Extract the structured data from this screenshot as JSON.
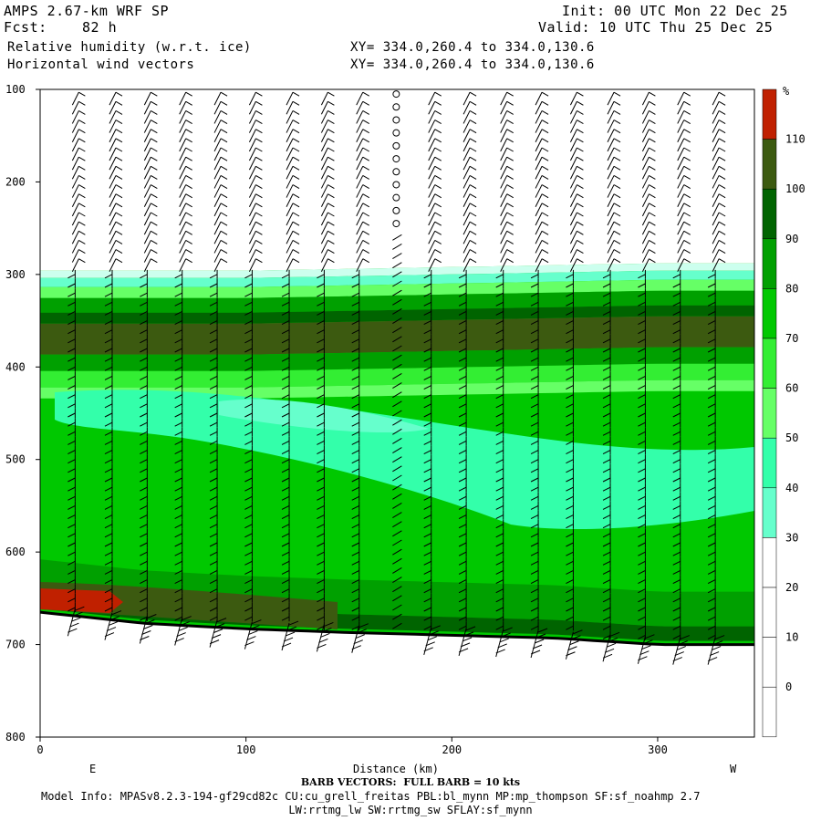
{
  "header": {
    "model": "AMPS 2.67-km WRF SP",
    "fcst_label": "Fcst:",
    "fcst_value": "82 h",
    "field1": "Relative humidity (w.r.t. ice)",
    "field2": "Horizontal wind vectors",
    "xy1": "XY= 334.0,260.4 to 334.0,130.6",
    "xy2": "XY= 334.0,260.4 to 334.0,130.6",
    "init": "Init: 00 UTC Mon 22 Dec 25",
    "valid": "Valid: 10 UTC Thu 25 Dec 25"
  },
  "footer": {
    "barb": "BARB VECTORS:  FULL BARB = 10 kts",
    "model_info": "Model Info: MPASv8.2.3-194-gf29cd82c CU:cu_grell_freitas PBL:bl_mynn MP:mp_thompson SF:sf_noahmp 2.7",
    "model_info2": "LW:rrtmg_lw SW:rrtmg_sw SFLAY:sf_mynn"
  },
  "colors": {
    "c110": "#c02000",
    "c100": "#3c5a10",
    "c90": "#006400",
    "c80": "#00a000",
    "c70": "#00c800",
    "c60": "#33ee33",
    "c50": "#66ff66",
    "c40": "#33ffaa",
    "c30": "#66ffcc",
    "c20": "#ccffee",
    "c0": "#ffffff",
    "ground": "#000000"
  },
  "chart_data": {
    "type": "heatmap",
    "title": "Relative humidity (w.r.t. ice)",
    "xlabel": "Distance (km)",
    "ylabel": "",
    "x_ticks": [
      0,
      100,
      200,
      300
    ],
    "y_ticks": [
      100,
      200,
      300,
      400,
      500,
      600,
      700,
      800
    ],
    "x_tick_labels": [
      "0",
      "100",
      "200",
      "300"
    ],
    "y_tick_labels": [
      "100",
      "200",
      "300",
      "400",
      "500",
      "600",
      "700",
      "800"
    ],
    "xlim": [
      0,
      347
    ],
    "ylim": [
      800,
      100
    ],
    "left_end_label": "E",
    "right_end_label": "W",
    "colorbar": {
      "unit": "%",
      "levels": [
        110,
        100,
        90,
        80,
        70,
        60,
        50,
        40,
        30,
        20,
        10,
        0
      ],
      "labels": [
        "110",
        "100",
        "90",
        "80",
        "70",
        "60",
        "50",
        "40",
        "30",
        "20",
        "10",
        "0"
      ]
    },
    "moist_layer_top": [
      [
        0,
        296
      ],
      [
        100,
        296
      ],
      [
        200,
        292
      ],
      [
        300,
        288
      ],
      [
        347,
        288
      ]
    ],
    "ground_pressure": [
      [
        0,
        665
      ],
      [
        50,
        677
      ],
      [
        100,
        683
      ],
      [
        150,
        687
      ],
      [
        200,
        690
      ],
      [
        250,
        693
      ],
      [
        300,
        700
      ],
      [
        347,
        700
      ]
    ],
    "barb_columns_km": [
      17,
      35,
      52,
      69,
      86,
      103,
      121,
      138,
      155,
      173,
      190,
      207,
      225,
      242,
      259,
      277,
      294,
      311,
      328
    ]
  }
}
